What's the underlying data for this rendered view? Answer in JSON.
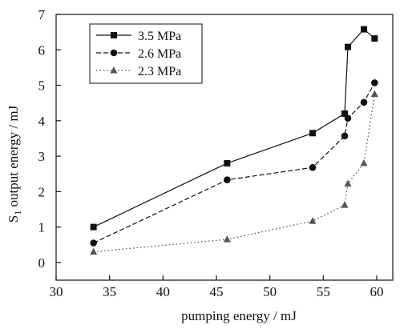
{
  "chart_data": {
    "type": "line",
    "xlabel": "pumping energy / mJ",
    "ylabel": "S1 output energy / mJ",
    "ylabel_main": "S",
    "ylabel_sub": "1",
    "ylabel_rest": " output energy / mJ",
    "xlim": [
      30,
      61.5
    ],
    "ylim": [
      -0.5,
      7
    ],
    "xticks": [
      30,
      35,
      40,
      45,
      50,
      55,
      60
    ],
    "yticks": [
      0,
      1,
      2,
      3,
      4,
      5,
      6,
      7
    ],
    "grid": false,
    "legend_position": "top-left",
    "series": [
      {
        "name": "3.5 MPa",
        "marker": "square",
        "dash": "solid",
        "x": [
          33.5,
          46.0,
          54.0,
          57.0,
          57.3,
          58.8,
          59.8
        ],
        "y": [
          1.0,
          2.8,
          3.65,
          4.2,
          6.08,
          6.58,
          6.32
        ]
      },
      {
        "name": "2.6 MPa",
        "marker": "circle",
        "dash": "dashed",
        "x": [
          33.5,
          46.0,
          54.0,
          57.0,
          57.3,
          58.8,
          59.8
        ],
        "y": [
          0.55,
          2.33,
          2.68,
          3.57,
          4.07,
          4.52,
          5.07
        ]
      },
      {
        "name": "2.3 MPa",
        "marker": "triangle",
        "dash": "dotted",
        "x": [
          33.5,
          46.0,
          54.0,
          57.0,
          57.3,
          58.8,
          59.8
        ],
        "y": [
          0.3,
          0.65,
          1.17,
          1.62,
          2.22,
          2.8,
          4.75
        ]
      }
    ]
  }
}
